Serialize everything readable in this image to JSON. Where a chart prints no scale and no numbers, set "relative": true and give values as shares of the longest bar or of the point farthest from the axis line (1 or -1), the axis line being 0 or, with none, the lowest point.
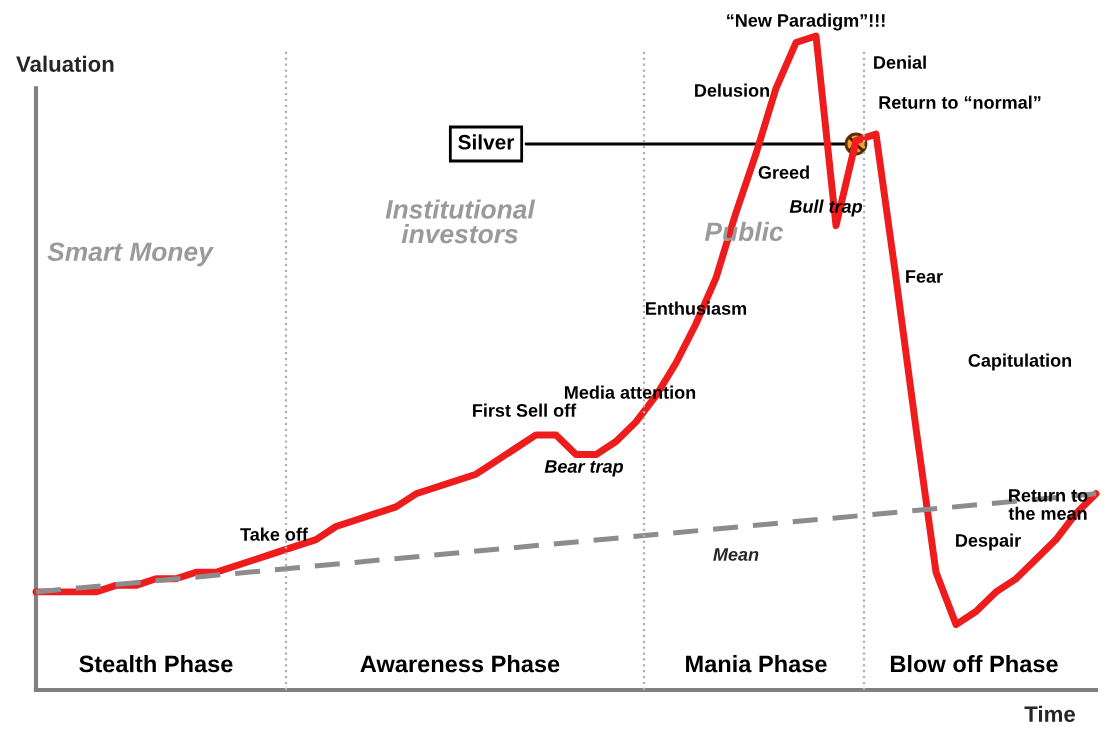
{
  "chart_data": {
    "type": "line",
    "relative": true,
    "xlabel": "Time",
    "ylabel": "Valuation",
    "categories": [
      null,
      null,
      null,
      null,
      null,
      null,
      null,
      null,
      null,
      null,
      null,
      null,
      null,
      null,
      null,
      null,
      null,
      null,
      null,
      null,
      null,
      null,
      null,
      null,
      null,
      null,
      null,
      null,
      null,
      null,
      null,
      null,
      null,
      null,
      null,
      null,
      null,
      null,
      null,
      null,
      null,
      null,
      null,
      null,
      null,
      null,
      null,
      null,
      null,
      null,
      null,
      null,
      null,
      null
    ],
    "series": [
      {
        "color": "#ee1c1c",
        "values": [
          0.15,
          0.15,
          0.15,
          0.15,
          0.16,
          0.16,
          0.17,
          0.17,
          0.18,
          0.18,
          0.19,
          0.2,
          0.21,
          0.22,
          0.23,
          0.25,
          0.26,
          0.27,
          0.28,
          0.3,
          0.31,
          0.32,
          0.33,
          0.35,
          0.37,
          0.39,
          0.39,
          0.36,
          0.36,
          0.38,
          0.41,
          0.45,
          0.5,
          0.56,
          0.63,
          0.73,
          0.82,
          0.92,
          0.99,
          1.0,
          0.71,
          0.84,
          0.85,
          0.63,
          0.4,
          0.18,
          0.1,
          0.12,
          0.15,
          0.17,
          0.2,
          0.23,
          0.27,
          0.3
        ]
      },
      {
        "name": "Mean",
        "color": "#8c8c8c",
        "line_style": "dashed",
        "values": [
          0.15,
          null,
          null,
          null,
          null,
          null,
          null,
          null,
          null,
          null,
          null,
          null,
          null,
          null,
          null,
          null,
          null,
          null,
          null,
          null,
          null,
          null,
          null,
          null,
          null,
          null,
          null,
          null,
          null,
          null,
          null,
          null,
          null,
          null,
          null,
          null,
          null,
          null,
          null,
          null,
          null,
          null,
          null,
          null,
          null,
          null,
          null,
          null,
          null,
          null,
          null,
          null,
          null,
          0.3
        ]
      }
    ],
    "annotations": [
      "Smart Money",
      "Institutional\ninvestors",
      "Public",
      "Stealth Phase",
      "Awareness Phase",
      "Mania Phase",
      "Blow off Phase",
      "Take off",
      "First Sell off",
      "Bear trap",
      "Media attention",
      "Enthusiasm",
      "Greed",
      "Delusion",
      "“New Paradigm”!!!",
      "Denial",
      "Return to “normal”",
      "Bull trap",
      "Fear",
      "Capitulation",
      "Despair",
      "Return to\nthe mean",
      "Silver"
    ],
    "legend": false
  }
}
